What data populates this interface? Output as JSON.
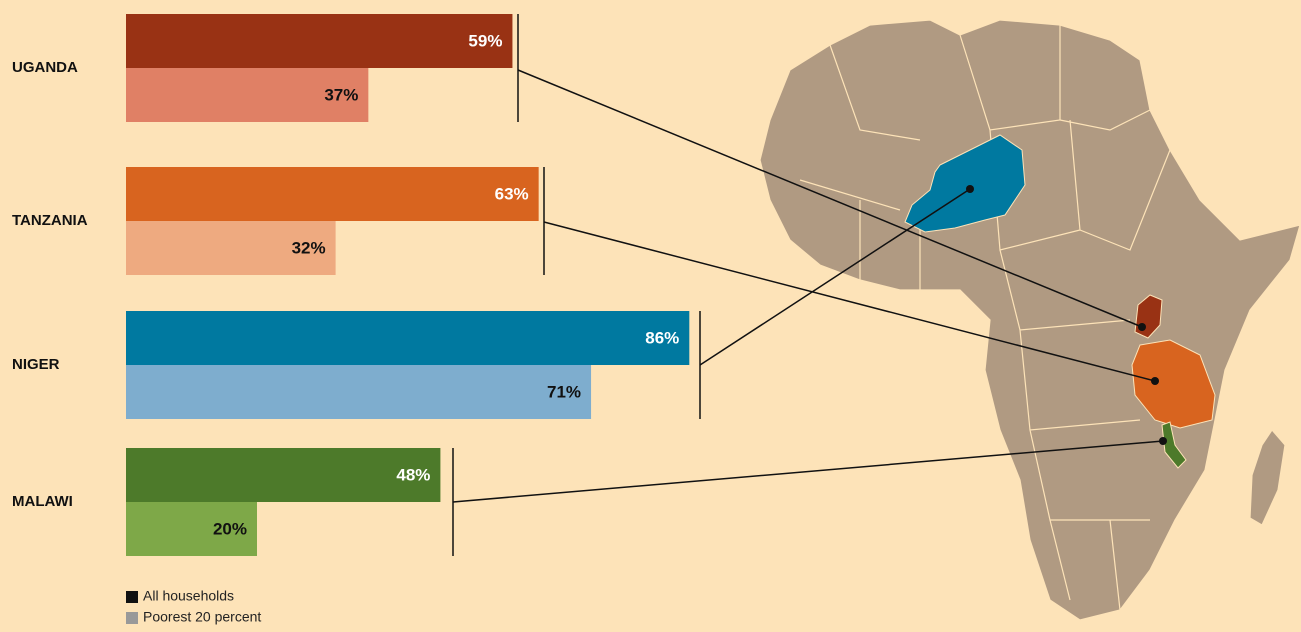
{
  "chart_data": {
    "type": "bar",
    "orientation": "horizontal",
    "categories": [
      "UGANDA",
      "TANZANIA",
      "NIGER",
      "MALAWI"
    ],
    "series": [
      {
        "name": "All households",
        "color": "#111111",
        "colors": [
          "#993214",
          "#d8641f",
          "#0079a0",
          "#4d7a2a"
        ],
        "values": [
          59,
          63,
          86,
          48
        ],
        "value_labels": [
          "59%",
          "63%",
          "86%",
          "48%"
        ]
      },
      {
        "name": "Poorest 20 percent",
        "color": "#999999",
        "colors": [
          "#e08065",
          "#eeaa80",
          "#7eadce",
          "#7ea848"
        ],
        "values": [
          37,
          32,
          71,
          20
        ],
        "value_labels": [
          "37%",
          "32%",
          "71%",
          "20%"
        ]
      }
    ],
    "xlim": [
      0,
      100
    ]
  }
}
